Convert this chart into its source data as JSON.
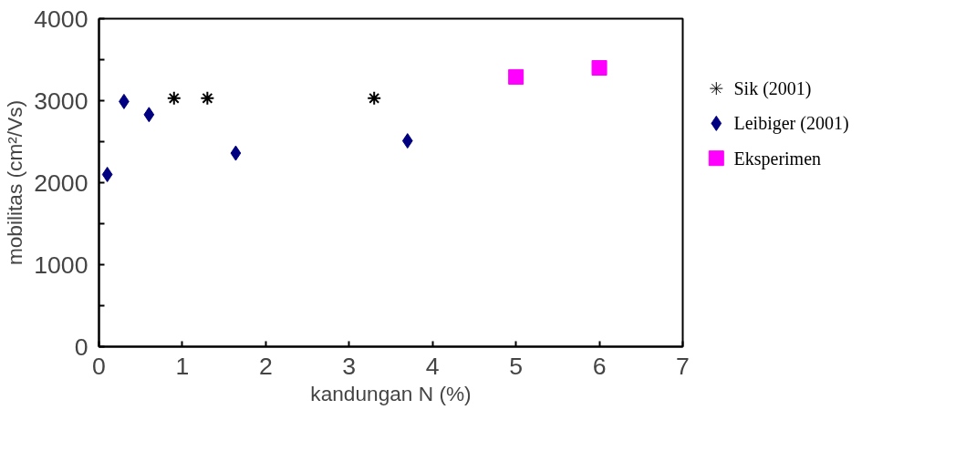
{
  "chart_data": {
    "type": "scatter",
    "xlabel": "kandungan N (%)",
    "ylabel": "mobilitas (cm²/Vs)",
    "xlim": [
      0,
      7
    ],
    "xticks": [
      0,
      1,
      2,
      3,
      4,
      5,
      6,
      7
    ],
    "ylim": [
      0,
      4000
    ],
    "yticks": [
      0,
      {
        "value": 500,
        "label": null
      },
      1000,
      {
        "value": 1500,
        "label": null
      },
      2000,
      {
        "value": 2500,
        "label": null
      },
      3000,
      {
        "value": 3500,
        "label": null
      },
      4000
    ],
    "grid": false,
    "legend": "right",
    "series": [
      {
        "name": "Sik (2001)",
        "color": "#000000",
        "marker": "cross",
        "x": [
          0.9,
          1.3,
          3.3
        ],
        "values": [
          3030,
          3030,
          3030
        ]
      },
      {
        "name": "Leibiger (2001)",
        "color": "#000080",
        "marker": "diamond",
        "x": [
          0.1,
          0.3,
          0.6,
          1.64,
          3.7
        ],
        "values": [
          2100,
          2990,
          2830,
          2360,
          2510
        ]
      },
      {
        "name": "Eksperimen",
        "color": "#ff00ff",
        "marker": "square",
        "x": [
          5.0,
          6.0
        ],
        "values": [
          3290,
          3400
        ]
      }
    ]
  }
}
